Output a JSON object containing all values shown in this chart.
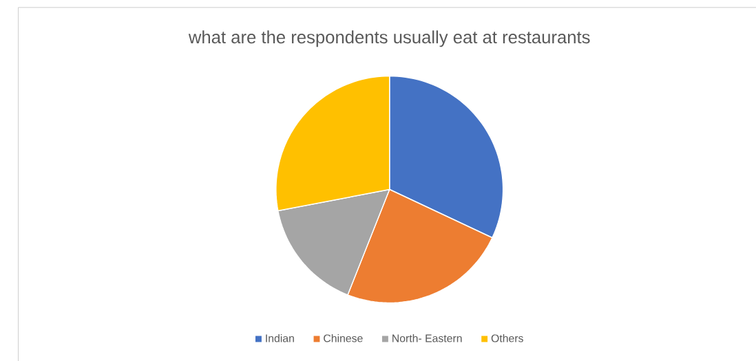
{
  "chart_data": {
    "type": "pie",
    "title": "what are the respondents usually eat at restaurants",
    "categories": [
      "Indian",
      "Chinese",
      "North- Eastern",
      "Others"
    ],
    "values": [
      32,
      24,
      16,
      28
    ],
    "colors": [
      "#4472c4",
      "#ed7d31",
      "#a5a5a5",
      "#ffc000"
    ],
    "legend": "bottom"
  }
}
